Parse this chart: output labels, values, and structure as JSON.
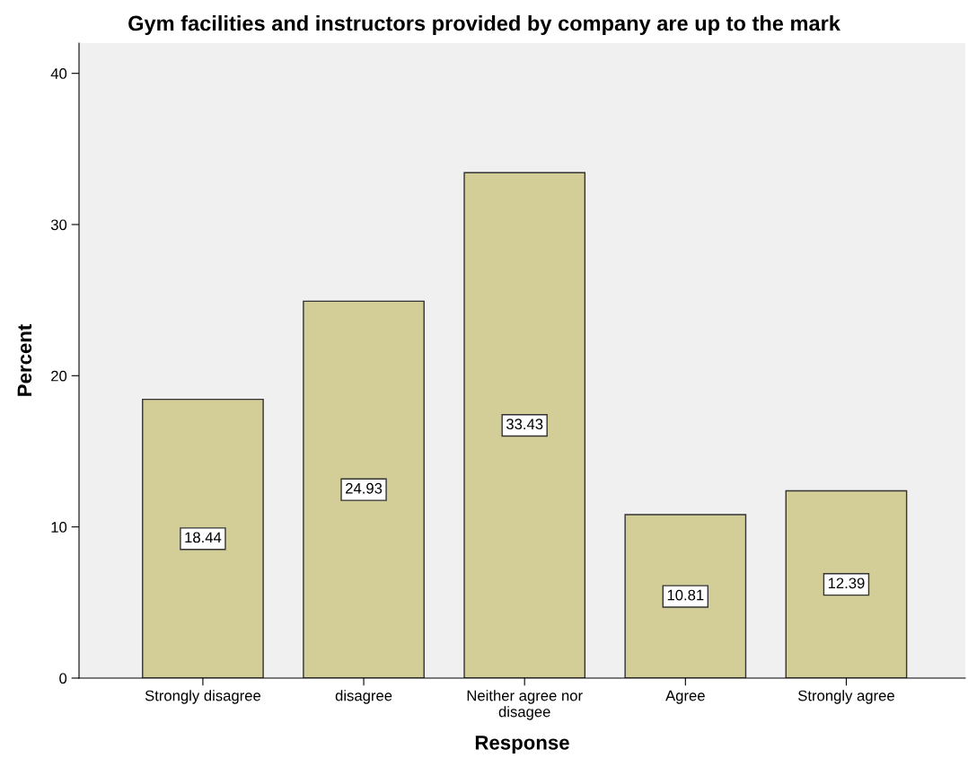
{
  "chart_data": {
    "type": "bar",
    "title": "Gym facilities and instructors provided by company are up to the mark",
    "xlabel": "Response",
    "ylabel": "Percent",
    "categories": [
      "Strongly disagree",
      "disagree",
      "Neither agree nor disagee",
      "Agree",
      "Strongly agree"
    ],
    "values": [
      18.44,
      24.93,
      33.43,
      10.81,
      12.39
    ],
    "color": "#d3ce97",
    "ylim": [
      0,
      42
    ],
    "yticks": [
      0,
      10,
      20,
      30,
      40
    ],
    "grid": false,
    "data_labels": true
  }
}
